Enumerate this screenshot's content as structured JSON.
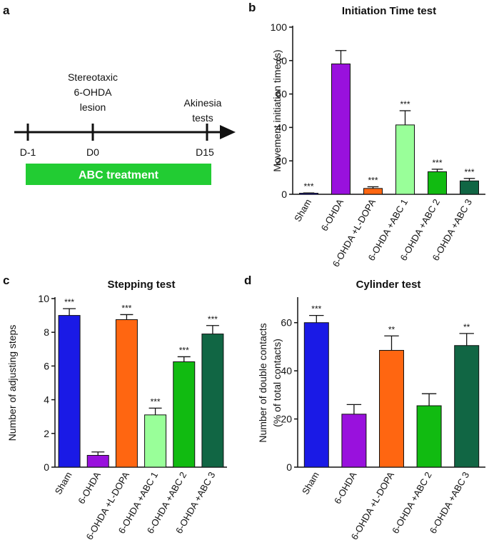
{
  "panels": {
    "a": "a",
    "b": "b",
    "c": "c",
    "d": "d"
  },
  "timeline": {
    "events": [
      {
        "day": "D-1",
        "above": []
      },
      {
        "day": "D0",
        "above": [
          "Stereotaxic",
          "6-OHDA",
          "lesion"
        ]
      },
      {
        "day": "D15",
        "above": [
          "Akinesia",
          "tests"
        ]
      }
    ],
    "treatment_label": "ABC treatment",
    "treatment_color": "#22cc33"
  },
  "chart_data": [
    {
      "id": "b",
      "type": "bar",
      "title": "Initiation Time test",
      "ylabel": "Movement initiation time (s)",
      "xlabel": "",
      "ylim": [
        0,
        100
      ],
      "yticks": [
        0,
        20,
        40,
        60,
        80,
        100
      ],
      "categories": [
        "Sham",
        "6-OHDA",
        "6-OHDA +L-DOPA",
        "6-OHDA +ABC 1",
        "6-OHDA +ABC 2",
        "6-OHDA +ABC 3"
      ],
      "values": [
        0.5,
        78,
        3.5,
        41.5,
        13.5,
        8
      ],
      "errors": [
        0.3,
        8,
        1,
        8.5,
        1.5,
        1.5
      ],
      "colors": [
        "#1a1ae6",
        "#9911dd",
        "#ff6611",
        "#99ff99",
        "#11bb11",
        "#116644"
      ],
      "significance": [
        "***",
        "",
        "***",
        "***",
        "***",
        "***"
      ]
    },
    {
      "id": "c",
      "type": "bar",
      "title": "Stepping test",
      "ylabel": "Number of adjusting steps",
      "xlabel": "",
      "ylim": [
        0,
        10
      ],
      "yticks": [
        0,
        2,
        4,
        6,
        8,
        10
      ],
      "categories": [
        "Sham",
        "6-OHDA",
        "6-OHDA +L-DOPA",
        "6-OHDA +ABC 1",
        "6-OHDA +ABC 2",
        "6-OHDA +ABC 3"
      ],
      "values": [
        9.0,
        0.7,
        8.75,
        3.1,
        6.25,
        7.9
      ],
      "errors": [
        0.4,
        0.2,
        0.3,
        0.4,
        0.3,
        0.5
      ],
      "colors": [
        "#1a1ae6",
        "#9911dd",
        "#ff6611",
        "#99ff99",
        "#11bb11",
        "#116644"
      ],
      "significance": [
        "***",
        "",
        "***",
        "***",
        "***",
        "***"
      ]
    },
    {
      "id": "d",
      "type": "bar",
      "title": "Cylinder test",
      "ylabel": "Number of double contacts",
      "ylabel2": "(% of total contacts)",
      "xlabel": "",
      "ylim": [
        0,
        70
      ],
      "yticks": [
        0,
        20,
        40,
        60
      ],
      "categories": [
        "Sham",
        "6-OHDA",
        "6-OHDA +L-DOPA",
        "6-OHDA +ABC 2",
        "6-OHDA +ABC 3"
      ],
      "values": [
        60,
        22,
        48.5,
        25.5,
        50.5
      ],
      "errors": [
        3,
        4,
        6,
        5,
        5
      ],
      "colors": [
        "#1a1ae6",
        "#9911dd",
        "#ff6611",
        "#11bb11",
        "#116644"
      ],
      "significance": [
        "***",
        "",
        "**",
        "",
        "**"
      ]
    }
  ]
}
